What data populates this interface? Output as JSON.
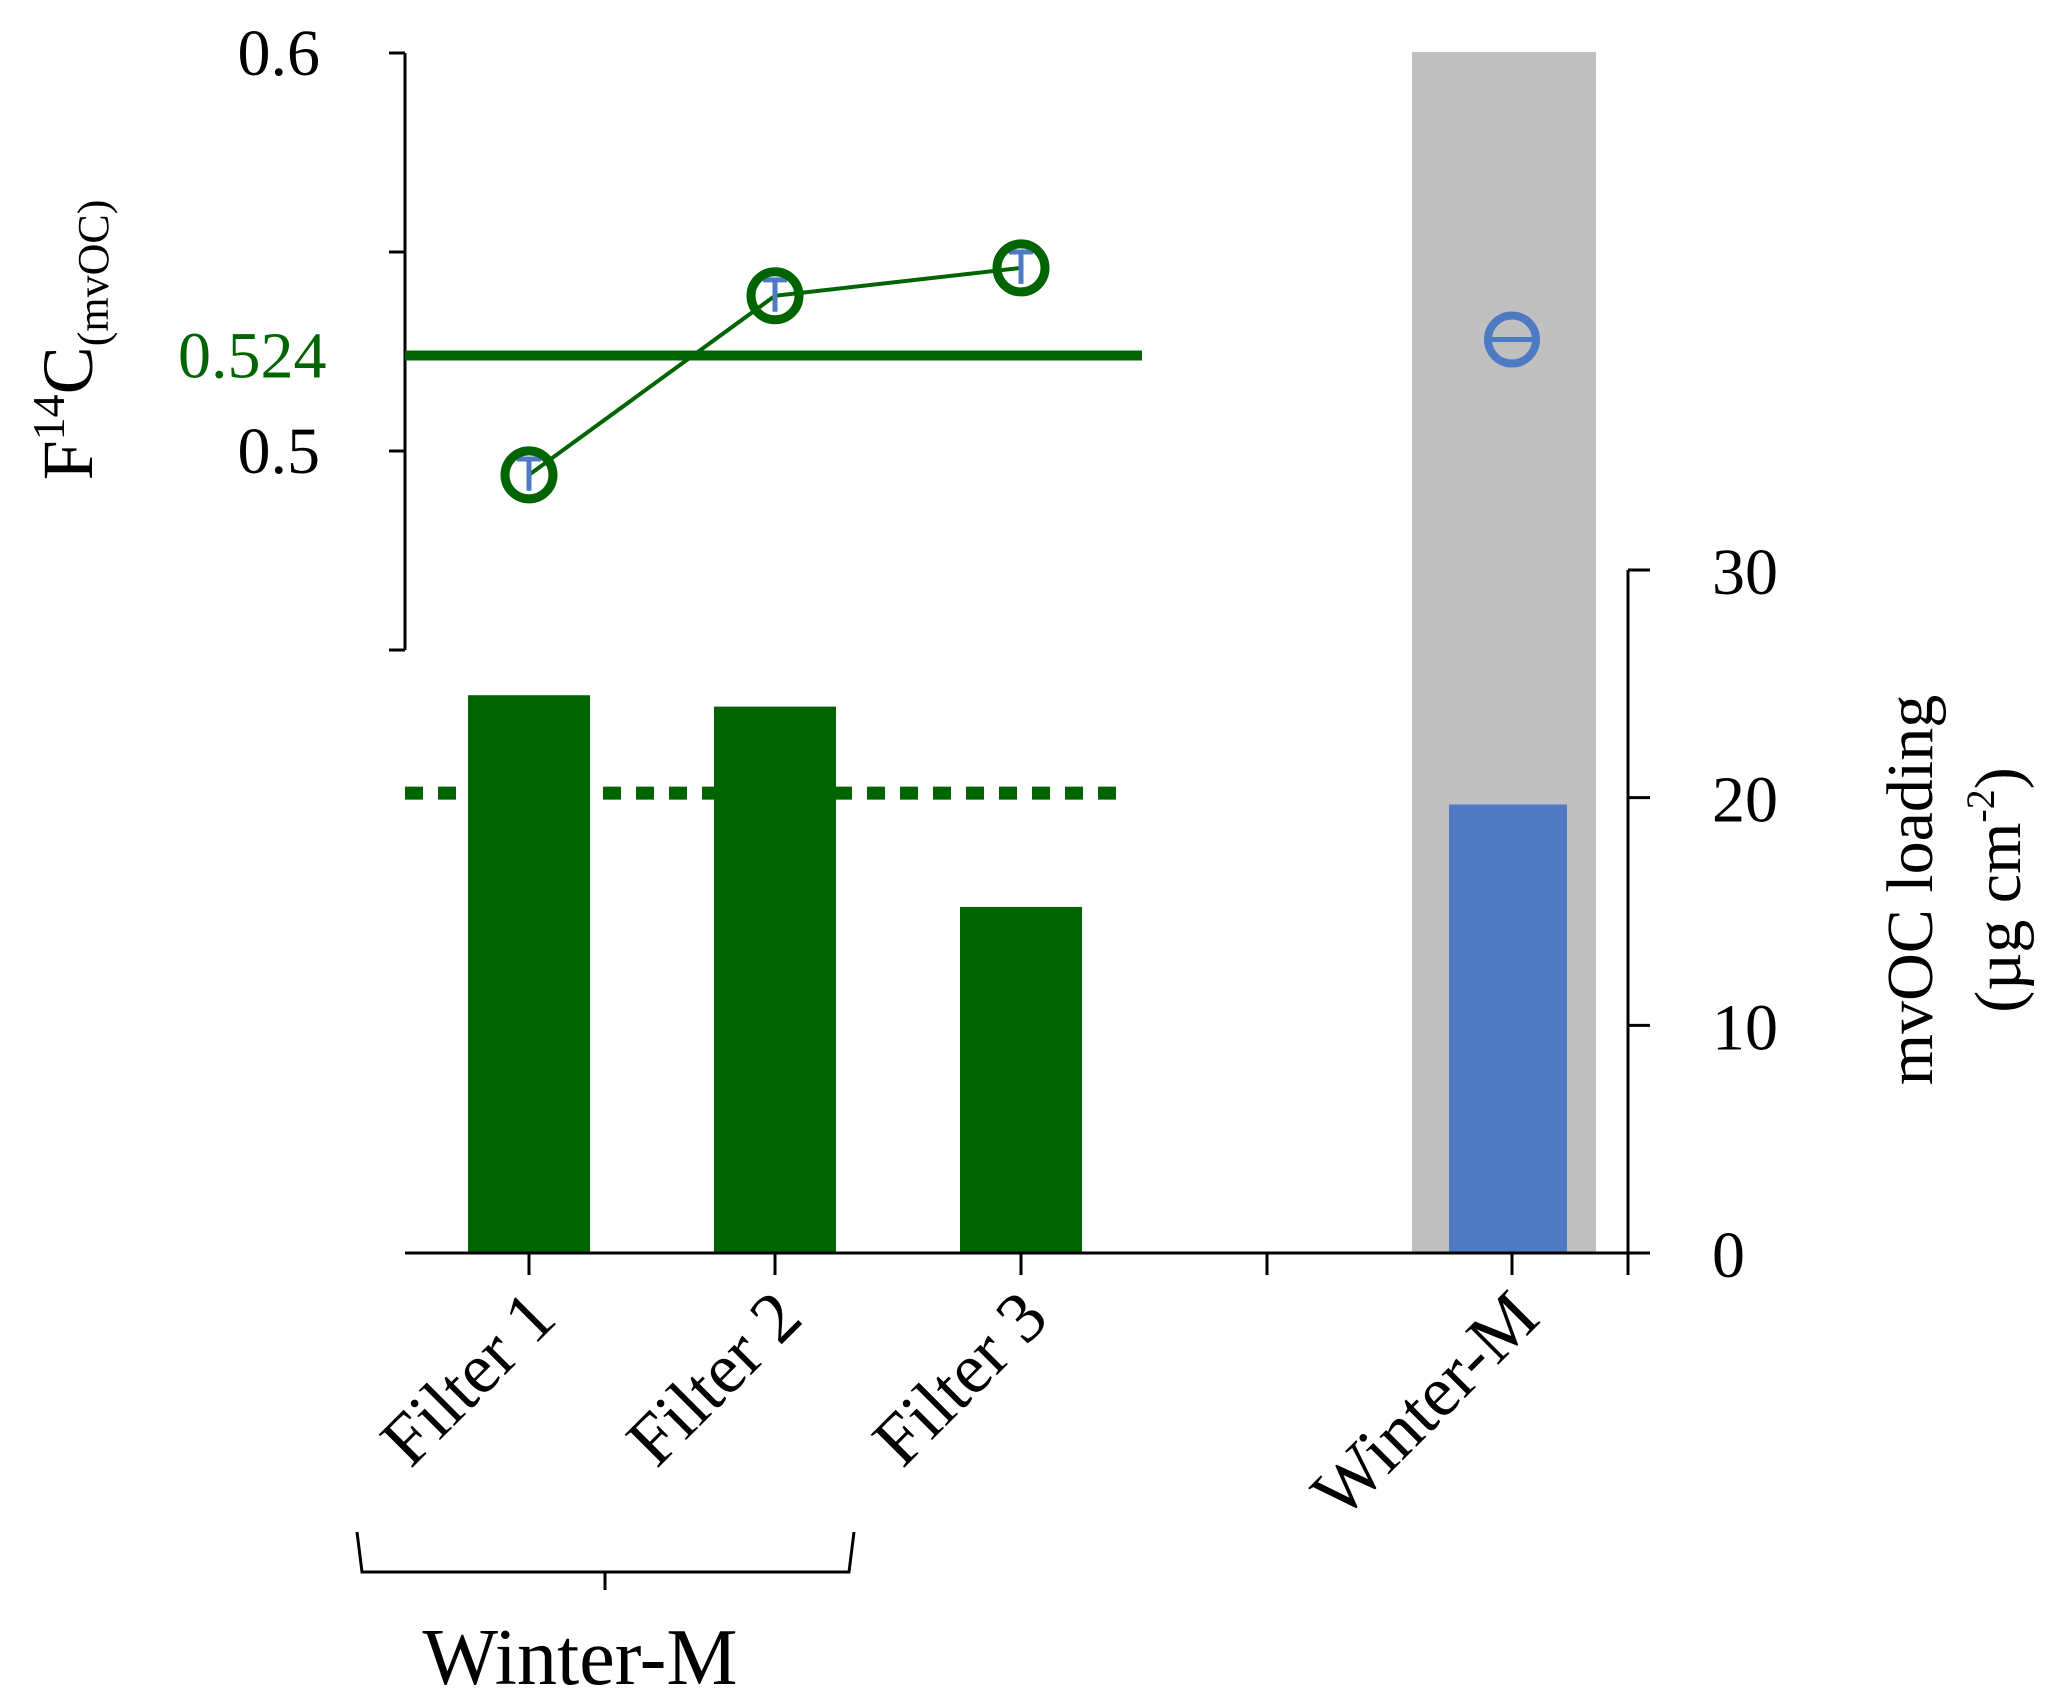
{
  "chart_data": {
    "type": "bar",
    "categories": [
      "Filter 1",
      "Filter 2",
      "Filter 3",
      "",
      "Winter-M"
    ],
    "group_label": "Winter-M",
    "colors": {
      "green": "#006400",
      "blue": "#4e79c3",
      "gray_band": "#c0c0c0",
      "axis": "#000000"
    },
    "f14c_axis": {
      "ylabel_main": "F",
      "ylabel_sup": "14",
      "ylabel_c": "C",
      "ylabel_sub": "(mvOC)",
      "ylim": [
        0.45,
        0.6
      ],
      "ticks": [
        0.5,
        0.55,
        0.6
      ],
      "tick_labels": [
        "0.5",
        "",
        "0.6"
      ]
    },
    "loading_axis": {
      "ylabel_line1": "mvOC loading",
      "ylabel_line2_prefix": "(µg cm",
      "ylabel_line2_sup": "-2",
      "ylabel_line2_suffix": ")",
      "ylim": [
        0,
        30
      ],
      "ticks": [
        0,
        10,
        20,
        30
      ],
      "tick_labels": [
        "0",
        "10",
        "20",
        "30"
      ]
    },
    "f14c_reference": {
      "value": 0.524,
      "label": "0.524"
    },
    "loading_reference": {
      "value": 20.2
    },
    "f14c_filters": [
      {
        "category": "Filter 1",
        "value": 0.494,
        "err": 0.004
      },
      {
        "category": "Filter 2",
        "value": 0.539,
        "err": 0.004
      },
      {
        "category": "Filter 3",
        "value": 0.546,
        "err": 0.004
      }
    ],
    "f14c_combined": {
      "category": "Winter-M",
      "value": 0.528,
      "err": 0.004
    },
    "loading_filters": [
      {
        "category": "Filter 1",
        "value": 24.5
      },
      {
        "category": "Filter 2",
        "value": 24.0
      },
      {
        "category": "Filter 3",
        "value": 15.2
      }
    ],
    "loading_combined": {
      "category": "Winter-M",
      "value": 19.7
    }
  }
}
